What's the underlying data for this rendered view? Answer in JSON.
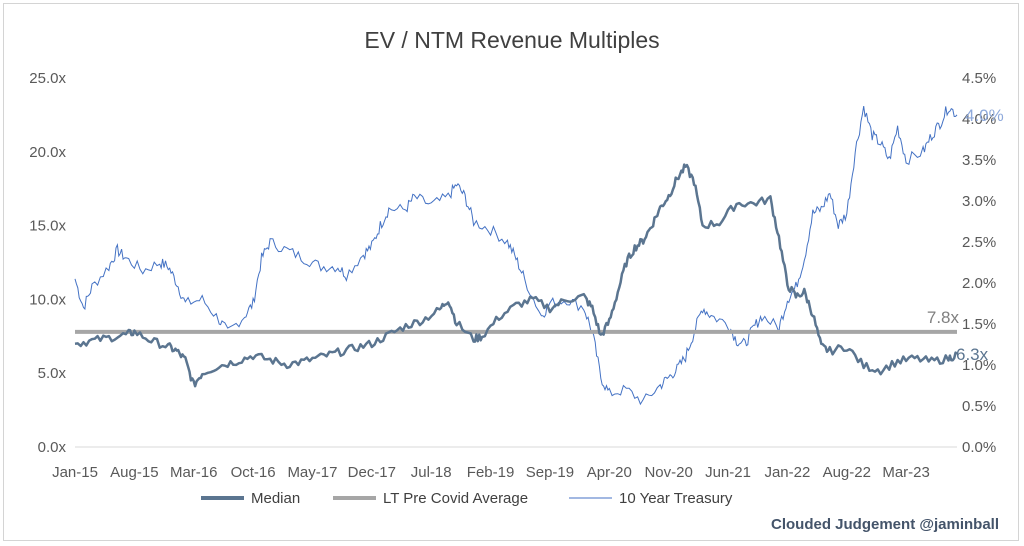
{
  "chart_data": {
    "type": "line",
    "title": "EV / NTM Revenue Multiples",
    "x_tick_labels": [
      "Jan-15",
      "Aug-15",
      "Mar-16",
      "Oct-16",
      "May-17",
      "Dec-17",
      "Jul-18",
      "Feb-19",
      "Sep-19",
      "Apr-20",
      "Nov-20",
      "Jun-21",
      "Jan-22",
      "Aug-22",
      "Mar-23"
    ],
    "x_range": [
      "2015-01",
      "2023-09"
    ],
    "y_left": {
      "ticks": [
        "0.0x",
        "5.0x",
        "10.0x",
        "15.0x",
        "20.0x",
        "25.0x"
      ],
      "range": [
        0,
        25
      ]
    },
    "y_right": {
      "ticks": [
        "0.0%",
        "0.5%",
        "1.0%",
        "1.5%",
        "2.0%",
        "2.5%",
        "3.0%",
        "3.5%",
        "4.0%",
        "4.5%"
      ],
      "range": [
        0,
        4.5
      ]
    },
    "legend_position": "bottom",
    "grid": false,
    "series": [
      {
        "name": "Median",
        "axis": "left",
        "color": "#5b7590",
        "end_label": "6.3x",
        "points": [
          [
            "2015-01",
            7.0
          ],
          [
            "2015-03",
            7.2
          ],
          [
            "2015-05",
            7.4
          ],
          [
            "2015-07",
            7.6
          ],
          [
            "2015-08",
            7.8
          ],
          [
            "2015-10",
            7.2
          ],
          [
            "2015-12",
            6.8
          ],
          [
            "2016-01",
            6.5
          ],
          [
            "2016-02",
            5.9
          ],
          [
            "2016-03",
            4.2
          ],
          [
            "2016-04",
            5.0
          ],
          [
            "2016-06",
            5.5
          ],
          [
            "2016-08",
            5.8
          ],
          [
            "2016-10",
            6.2
          ],
          [
            "2016-12",
            5.9
          ],
          [
            "2017-02",
            5.6
          ],
          [
            "2017-04",
            5.8
          ],
          [
            "2017-06",
            6.1
          ],
          [
            "2017-08",
            6.4
          ],
          [
            "2017-10",
            6.7
          ],
          [
            "2017-12",
            7.0
          ],
          [
            "2018-02",
            7.6
          ],
          [
            "2018-04",
            8.2
          ],
          [
            "2018-06",
            8.6
          ],
          [
            "2018-08",
            9.3
          ],
          [
            "2018-09",
            10.0
          ],
          [
            "2018-10",
            8.4
          ],
          [
            "2018-12",
            7.3
          ],
          [
            "2019-01",
            7.5
          ],
          [
            "2019-03",
            8.8
          ],
          [
            "2019-05",
            9.6
          ],
          [
            "2019-07",
            10.0
          ],
          [
            "2019-09",
            9.4
          ],
          [
            "2019-11",
            10.0
          ],
          [
            "2020-01",
            10.2
          ],
          [
            "2020-02",
            9.4
          ],
          [
            "2020-03",
            7.5
          ],
          [
            "2020-04",
            8.5
          ],
          [
            "2020-05",
            10.5
          ],
          [
            "2020-06",
            12.5
          ],
          [
            "2020-07",
            13.5
          ],
          [
            "2020-08",
            14.0
          ],
          [
            "2020-09",
            15.0
          ],
          [
            "2020-10",
            16.2
          ],
          [
            "2020-11",
            17.0
          ],
          [
            "2020-12",
            18.2
          ],
          [
            "2021-01",
            19.0
          ],
          [
            "2021-02",
            18.0
          ],
          [
            "2021-03",
            15.0
          ],
          [
            "2021-05",
            15.2
          ],
          [
            "2021-07",
            16.5
          ],
          [
            "2021-09",
            16.5
          ],
          [
            "2021-11",
            16.8
          ],
          [
            "2021-12",
            14.2
          ],
          [
            "2022-01",
            11.0
          ],
          [
            "2022-02",
            10.2
          ],
          [
            "2022-03",
            10.5
          ],
          [
            "2022-04",
            9.0
          ],
          [
            "2022-05",
            6.8
          ],
          [
            "2022-06",
            6.5
          ],
          [
            "2022-08",
            6.8
          ],
          [
            "2022-10",
            5.5
          ],
          [
            "2022-12",
            5.2
          ],
          [
            "2023-02",
            5.8
          ],
          [
            "2023-04",
            6.0
          ],
          [
            "2023-06",
            5.8
          ],
          [
            "2023-08",
            6.0
          ],
          [
            "2023-09",
            6.3
          ]
        ]
      },
      {
        "name": "LT Pre Covid Average",
        "axis": "left",
        "color": "#a6a6a6",
        "value": 7.8,
        "end_label": "7.8x"
      },
      {
        "name": "10 Year Treasury",
        "axis": "right",
        "color": "#4472c4",
        "end_label": "4.0%",
        "points": [
          [
            "2015-01",
            2.05
          ],
          [
            "2015-02",
            1.7
          ],
          [
            "2015-03",
            1.95
          ],
          [
            "2015-05",
            2.2
          ],
          [
            "2015-06",
            2.4
          ],
          [
            "2015-07",
            2.3
          ],
          [
            "2015-09",
            2.15
          ],
          [
            "2015-11",
            2.25
          ],
          [
            "2015-12",
            2.2
          ],
          [
            "2016-01",
            2.0
          ],
          [
            "2016-02",
            1.75
          ],
          [
            "2016-04",
            1.8
          ],
          [
            "2016-06",
            1.55
          ],
          [
            "2016-07",
            1.4
          ],
          [
            "2016-09",
            1.6
          ],
          [
            "2016-10",
            1.75
          ],
          [
            "2016-11",
            2.3
          ],
          [
            "2016-12",
            2.5
          ],
          [
            "2017-02",
            2.4
          ],
          [
            "2017-04",
            2.3
          ],
          [
            "2017-06",
            2.2
          ],
          [
            "2017-08",
            2.2
          ],
          [
            "2017-09",
            2.1
          ],
          [
            "2017-11",
            2.35
          ],
          [
            "2017-12",
            2.45
          ],
          [
            "2018-01",
            2.7
          ],
          [
            "2018-02",
            2.9
          ],
          [
            "2018-04",
            2.9
          ],
          [
            "2018-05",
            3.05
          ],
          [
            "2018-07",
            2.95
          ],
          [
            "2018-09",
            3.05
          ],
          [
            "2018-10",
            3.2
          ],
          [
            "2018-11",
            3.05
          ],
          [
            "2018-12",
            2.75
          ],
          [
            "2019-02",
            2.65
          ],
          [
            "2019-04",
            2.5
          ],
          [
            "2019-05",
            2.3
          ],
          [
            "2019-06",
            2.05
          ],
          [
            "2019-08",
            1.6
          ],
          [
            "2019-09",
            1.75
          ],
          [
            "2019-11",
            1.8
          ],
          [
            "2020-01",
            1.7
          ],
          [
            "2020-02",
            1.4
          ],
          [
            "2020-03",
            0.85
          ],
          [
            "2020-04",
            0.65
          ],
          [
            "2020-06",
            0.7
          ],
          [
            "2020-08",
            0.55
          ],
          [
            "2020-10",
            0.75
          ],
          [
            "2020-11",
            0.85
          ],
          [
            "2020-12",
            0.95
          ],
          [
            "2021-01",
            1.1
          ],
          [
            "2021-02",
            1.4
          ],
          [
            "2021-03",
            1.7
          ],
          [
            "2021-04",
            1.6
          ],
          [
            "2021-06",
            1.5
          ],
          [
            "2021-07",
            1.3
          ],
          [
            "2021-08",
            1.25
          ],
          [
            "2021-09",
            1.45
          ],
          [
            "2021-10",
            1.6
          ],
          [
            "2021-12",
            1.45
          ],
          [
            "2022-01",
            1.8
          ],
          [
            "2022-02",
            1.95
          ],
          [
            "2022-03",
            2.3
          ],
          [
            "2022-04",
            2.85
          ],
          [
            "2022-05",
            2.9
          ],
          [
            "2022-06",
            3.1
          ],
          [
            "2022-07",
            2.7
          ],
          [
            "2022-08",
            2.85
          ],
          [
            "2022-09",
            3.6
          ],
          [
            "2022-10",
            4.15
          ],
          [
            "2022-11",
            3.8
          ],
          [
            "2022-12",
            3.7
          ],
          [
            "2023-01",
            3.5
          ],
          [
            "2023-02",
            3.9
          ],
          [
            "2023-03",
            3.5
          ],
          [
            "2023-05",
            3.6
          ],
          [
            "2023-06",
            3.8
          ],
          [
            "2023-07",
            3.95
          ],
          [
            "2023-08",
            4.15
          ],
          [
            "2023-09",
            4.05
          ]
        ]
      }
    ]
  },
  "credit": "Clouded Judgement @jaminball"
}
